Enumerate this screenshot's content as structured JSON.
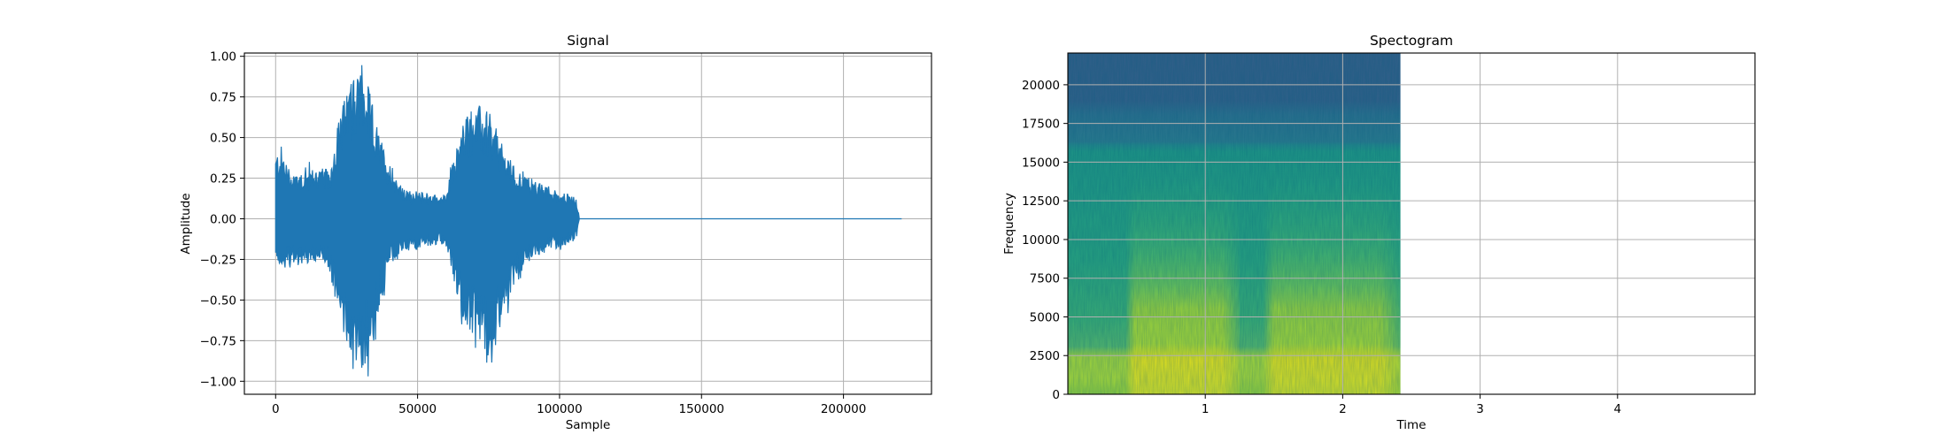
{
  "chart_data": [
    {
      "type": "line",
      "title": "Signal",
      "xlabel": "Sample",
      "ylabel": "Amplitude",
      "xlim": [
        -11000,
        231000
      ],
      "ylim": [
        -1.08,
        1.02
      ],
      "xticks": [
        0,
        50000,
        100000,
        150000,
        200000
      ],
      "xtick_labels": [
        "0",
        "50000",
        "100000",
        "150000",
        "200000"
      ],
      "yticks": [
        -1.0,
        -0.75,
        -0.5,
        -0.25,
        0.0,
        0.25,
        0.5,
        0.75,
        1.0
      ],
      "ytick_labels": [
        "−1.00",
        "−0.75",
        "−0.50",
        "−0.25",
        "0.00",
        "0.25",
        "0.50",
        "0.75",
        "1.00"
      ],
      "grid": true,
      "color": "#1f77b4",
      "series": [
        {
          "x": [
            0,
            2000,
            5000,
            10000,
            15000,
            19000,
            22000,
            26000,
            30000,
            33000,
            36000,
            40000,
            45000,
            50000,
            55000,
            60000,
            63000,
            67000,
            72000,
            76000,
            80000,
            85000,
            90000,
            95000,
            100000,
            104000,
            106000,
            107000,
            150000,
            200000,
            220500
          ],
          "upper": [
            0.4,
            0.45,
            0.3,
            0.3,
            0.32,
            0.3,
            0.6,
            0.85,
            0.93,
            0.8,
            0.55,
            0.35,
            0.18,
            0.17,
            0.15,
            0.15,
            0.4,
            0.65,
            0.7,
            0.6,
            0.45,
            0.3,
            0.25,
            0.2,
            0.17,
            0.15,
            0.12,
            0.0,
            0.0,
            0.0,
            0.0
          ],
          "lower": [
            -0.25,
            -0.3,
            -0.3,
            -0.28,
            -0.28,
            -0.3,
            -0.65,
            -0.8,
            -0.98,
            -0.85,
            -0.6,
            -0.3,
            -0.2,
            -0.18,
            -0.17,
            -0.15,
            -0.4,
            -0.7,
            -0.75,
            -0.88,
            -0.6,
            -0.35,
            -0.25,
            -0.2,
            -0.18,
            -0.15,
            -0.12,
            0.0,
            0.0,
            0.0,
            0.0
          ]
        }
      ]
    },
    {
      "type": "heatmap",
      "title": "Spectogram",
      "xlabel": "Time",
      "ylabel": "Frequency",
      "xlim": [
        0,
        5
      ],
      "ylim": [
        0,
        22050
      ],
      "xticks": [
        1,
        2,
        3,
        4
      ],
      "xtick_labels": [
        "1",
        "2",
        "3",
        "4"
      ],
      "yticks": [
        0,
        2500,
        5000,
        7500,
        10000,
        12500,
        15000,
        17500,
        20000
      ],
      "ytick_labels": [
        "0",
        "2500",
        "5000",
        "7500",
        "10000",
        "12500",
        "15000",
        "17500",
        "20000"
      ],
      "grid": true,
      "data_extent": {
        "time": [
          0,
          2.42
        ],
        "frequency": [
          0,
          22050
        ]
      },
      "colormap": "viridis",
      "bursts": [
        {
          "start": 0.42,
          "end": 1.25,
          "intensity": 1.0
        },
        {
          "start": 1.42,
          "end": 2.42,
          "intensity": 0.95
        }
      ]
    }
  ]
}
